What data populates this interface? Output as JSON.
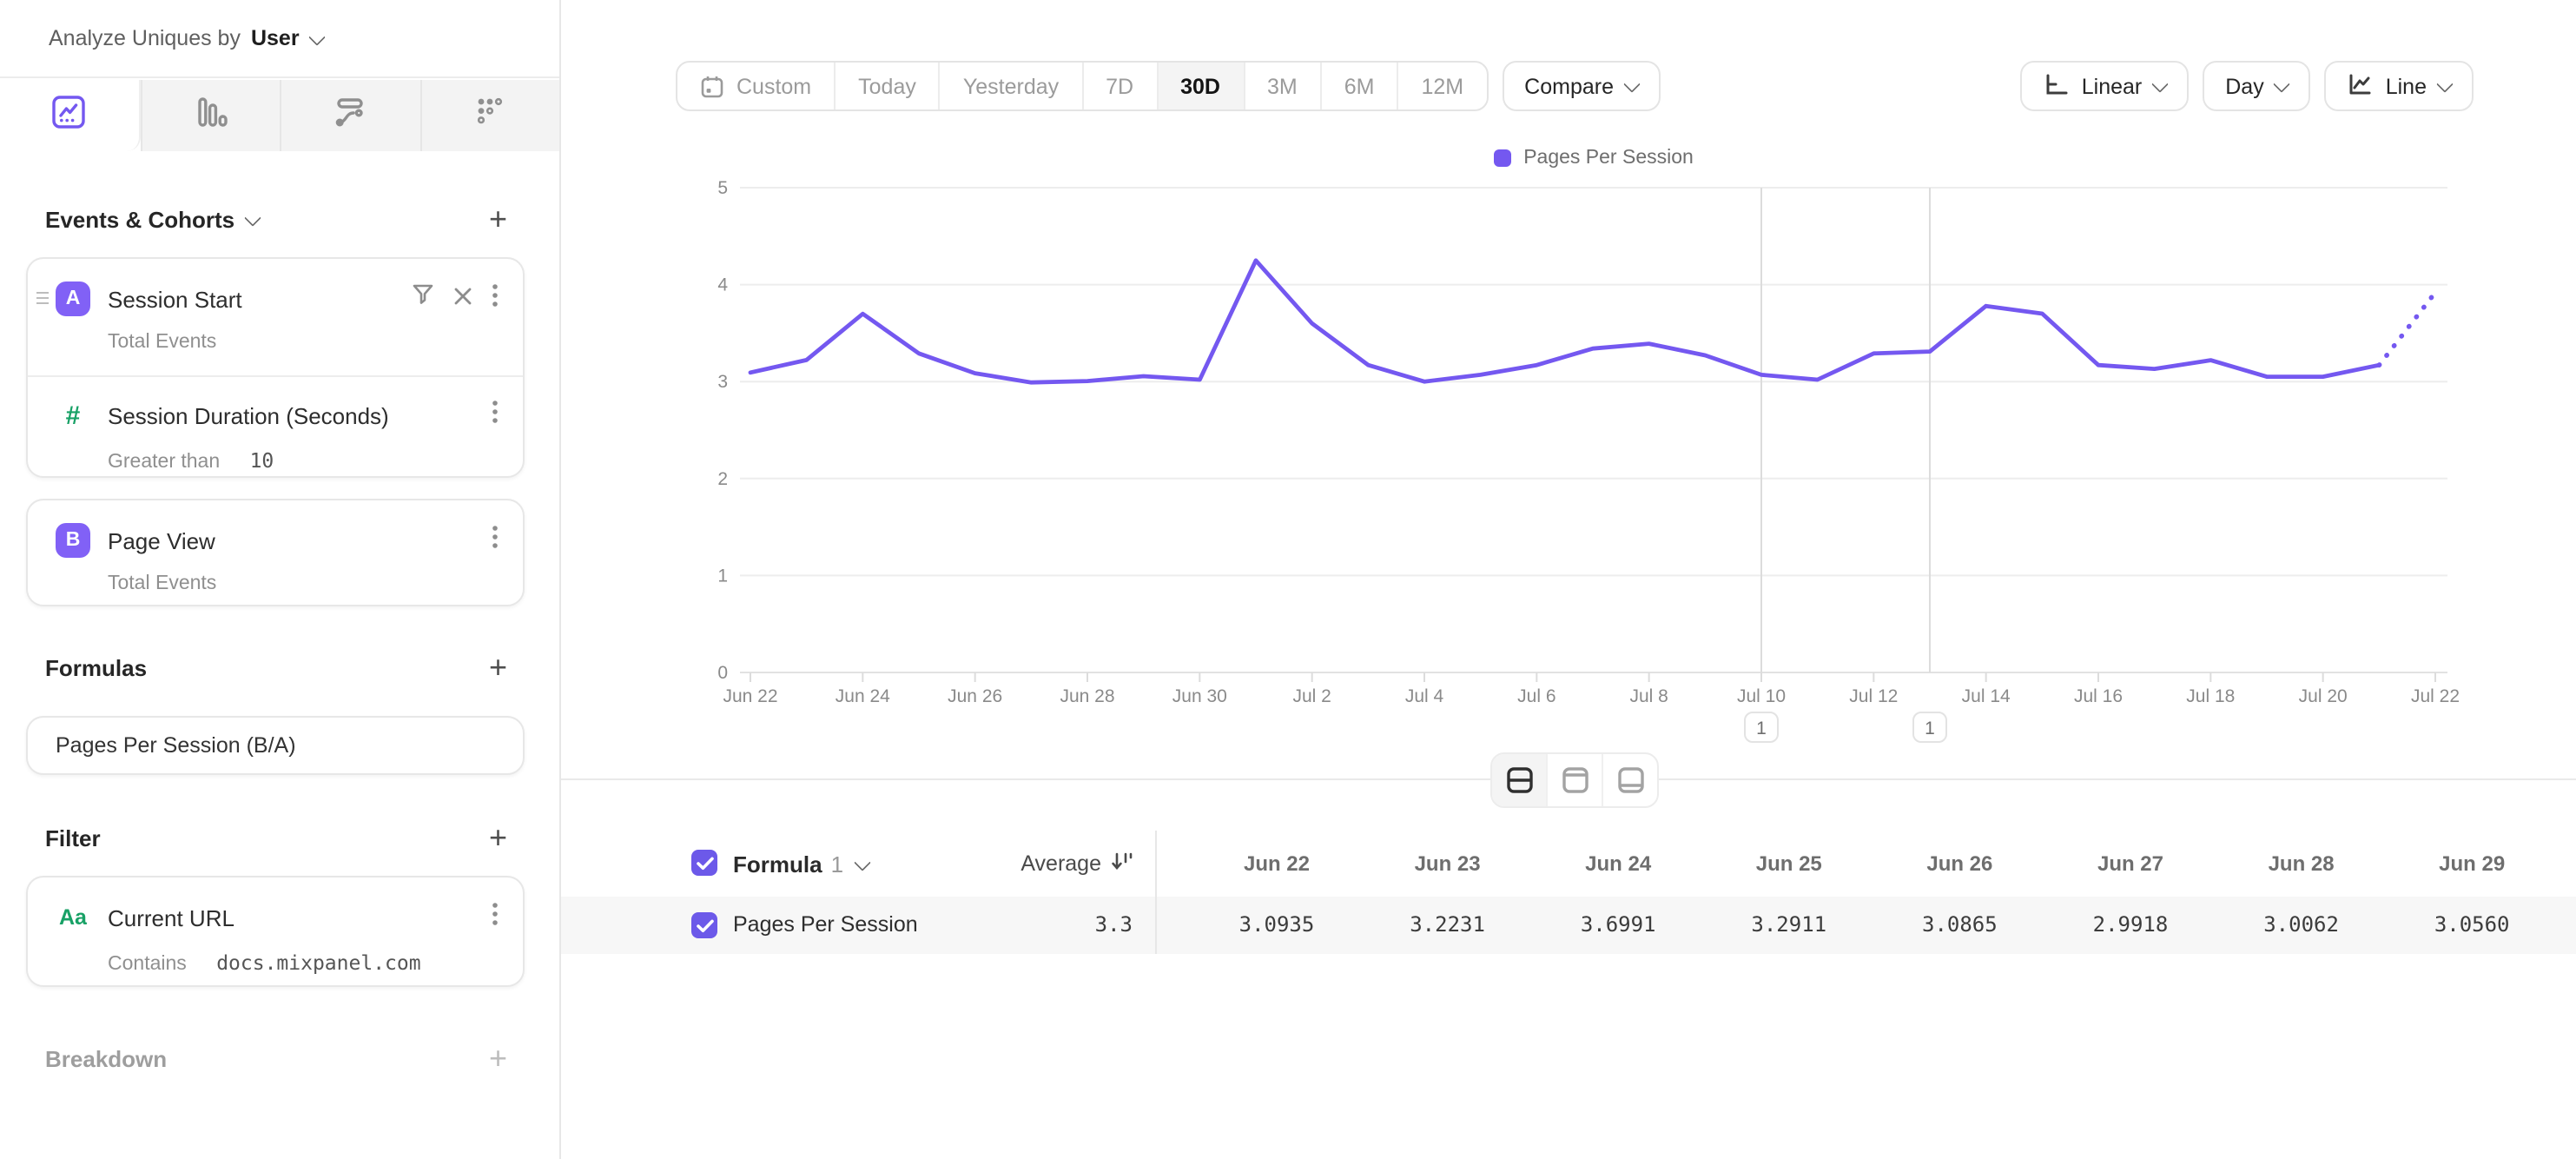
{
  "colors": {
    "accent": "#7458f0",
    "badge": "#8161f6",
    "checkbox": "#6c59e9",
    "green": "#18a166",
    "grid": "#ededed",
    "annotation_line": "#dcdcdc"
  },
  "sidebar": {
    "analyze_label": "Analyze Uniques by",
    "analyze_value": "User",
    "tabs": [
      "insights",
      "funnels",
      "flows",
      "retention"
    ],
    "active_tab": "insights",
    "events_header": "Events & Cohorts",
    "formulas_header": "Formulas",
    "filter_header": "Filter",
    "breakdown_header": "Breakdown",
    "events": {
      "first": {
        "badge": "A",
        "title": "Session Start",
        "subtitle": "Total Events"
      },
      "property": {
        "badge": "#",
        "title": "Session Duration (Seconds)",
        "sub_label": "Greater than",
        "sub_value": "10"
      },
      "second": {
        "badge": "B",
        "title": "Page View",
        "subtitle": "Total Events"
      }
    },
    "formula": {
      "title": "Pages Per Session (B/A)"
    },
    "filter_item": {
      "badge": "Aa",
      "title": "Current URL",
      "sub_label": "Contains",
      "sub_value": "docs.mixpanel.com"
    }
  },
  "controls": {
    "ranges": [
      "Custom",
      "Today",
      "Yesterday",
      "7D",
      "30D",
      "3M",
      "6M",
      "12M"
    ],
    "active_range": "30D",
    "compare_label": "Compare",
    "scale_label": "Linear",
    "interval_label": "Day",
    "chart_type_label": "Line"
  },
  "chart_data": {
    "type": "line",
    "title": "",
    "xlabel": "",
    "ylabel": "",
    "ylim": [
      0,
      5
    ],
    "yticks": [
      0,
      1,
      2,
      3,
      4,
      5
    ],
    "grid": "horizontal",
    "legend": [
      "Pages Per Session"
    ],
    "legend_position": "top-center",
    "x": [
      "Jun 22",
      "Jun 23",
      "Jun 24",
      "Jun 25",
      "Jun 26",
      "Jun 27",
      "Jun 28",
      "Jun 29",
      "Jun 30",
      "Jul 1",
      "Jul 2",
      "Jul 3",
      "Jul 4",
      "Jul 5",
      "Jul 6",
      "Jul 7",
      "Jul 8",
      "Jul 9",
      "Jul 10",
      "Jul 11",
      "Jul 12",
      "Jul 13",
      "Jul 14",
      "Jul 15",
      "Jul 16",
      "Jul 17",
      "Jul 18",
      "Jul 19",
      "Jul 20",
      "Jul 21",
      "Jul 22"
    ],
    "xtick_every": 2,
    "series": [
      {
        "name": "Pages Per Session",
        "color": "#7458f0",
        "values": [
          3.0935,
          3.2231,
          3.6991,
          3.2911,
          3.0865,
          2.9918,
          3.0062,
          3.056,
          3.02,
          4.25,
          3.6,
          3.17,
          3.0,
          3.07,
          3.17,
          3.34,
          3.39,
          3.27,
          3.07,
          3.02,
          3.29,
          3.31,
          3.78,
          3.7,
          3.17,
          3.13,
          3.22,
          3.05,
          3.05,
          3.17,
          3.92
        ],
        "dashed_from_index": 29
      }
    ],
    "annotations": [
      {
        "label": "1",
        "x": "Jul 10"
      },
      {
        "label": "1",
        "x": "Jul 13"
      }
    ]
  },
  "table": {
    "row_label_header": "Formula",
    "row_label_index": "1",
    "average_header": "Average",
    "columns": [
      "Jun 22",
      "Jun 23",
      "Jun 24",
      "Jun 25",
      "Jun 26",
      "Jun 27",
      "Jun 28",
      "Jun 29"
    ],
    "rows": [
      {
        "label": "Pages Per Session",
        "average": "3.3",
        "values": [
          "3.0935",
          "3.2231",
          "3.6991",
          "3.2911",
          "3.0865",
          "2.9918",
          "3.0062",
          "3.0560"
        ]
      }
    ]
  }
}
